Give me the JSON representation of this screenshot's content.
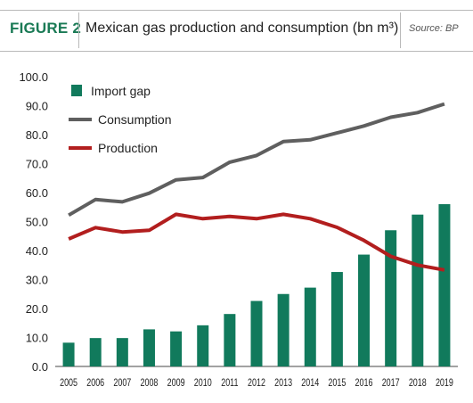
{
  "header": {
    "figure_label": "FIGURE 2",
    "title": "Mexican gas production and consumption (bn m³)",
    "source": "Source: BP",
    "accent_color": "#1a7a55"
  },
  "chart_data": {
    "type": "bar",
    "categories": [
      "2005",
      "2006",
      "2007",
      "2008",
      "2009",
      "2010",
      "2011",
      "2012",
      "2013",
      "2014",
      "2015",
      "2016",
      "2017",
      "2018",
      "2019"
    ],
    "ylim": [
      0,
      100
    ],
    "yticks": [
      "0.0",
      "10.0",
      "20.0",
      "30.0",
      "40.0",
      "50.0",
      "60.0",
      "70.0",
      "80.0",
      "90.0",
      "100.0"
    ],
    "legend_position": "top-left",
    "grid": false,
    "series": [
      {
        "name": "Import gap",
        "type": "bar",
        "color": "#117a5c",
        "values": [
          8.2,
          9.8,
          9.8,
          12.8,
          12.1,
          14.2,
          18.1,
          22.6,
          25.0,
          27.2,
          32.6,
          38.6,
          47.0,
          52.4,
          56.0
        ]
      },
      {
        "name": "Consumption",
        "type": "line",
        "color": "#5f5f5f",
        "values": [
          52.2,
          57.6,
          56.8,
          59.8,
          64.4,
          65.2,
          70.5,
          72.8,
          77.6,
          78.2,
          80.6,
          83.0,
          86.0,
          87.6,
          90.6
        ]
      },
      {
        "name": "Production",
        "type": "line",
        "color": "#b21e1e",
        "values": [
          44.0,
          47.9,
          46.4,
          47.0,
          52.5,
          51.0,
          51.8,
          51.0,
          52.5,
          51.0,
          48.0,
          43.5,
          38.0,
          35.0,
          33.3
        ]
      }
    ]
  }
}
